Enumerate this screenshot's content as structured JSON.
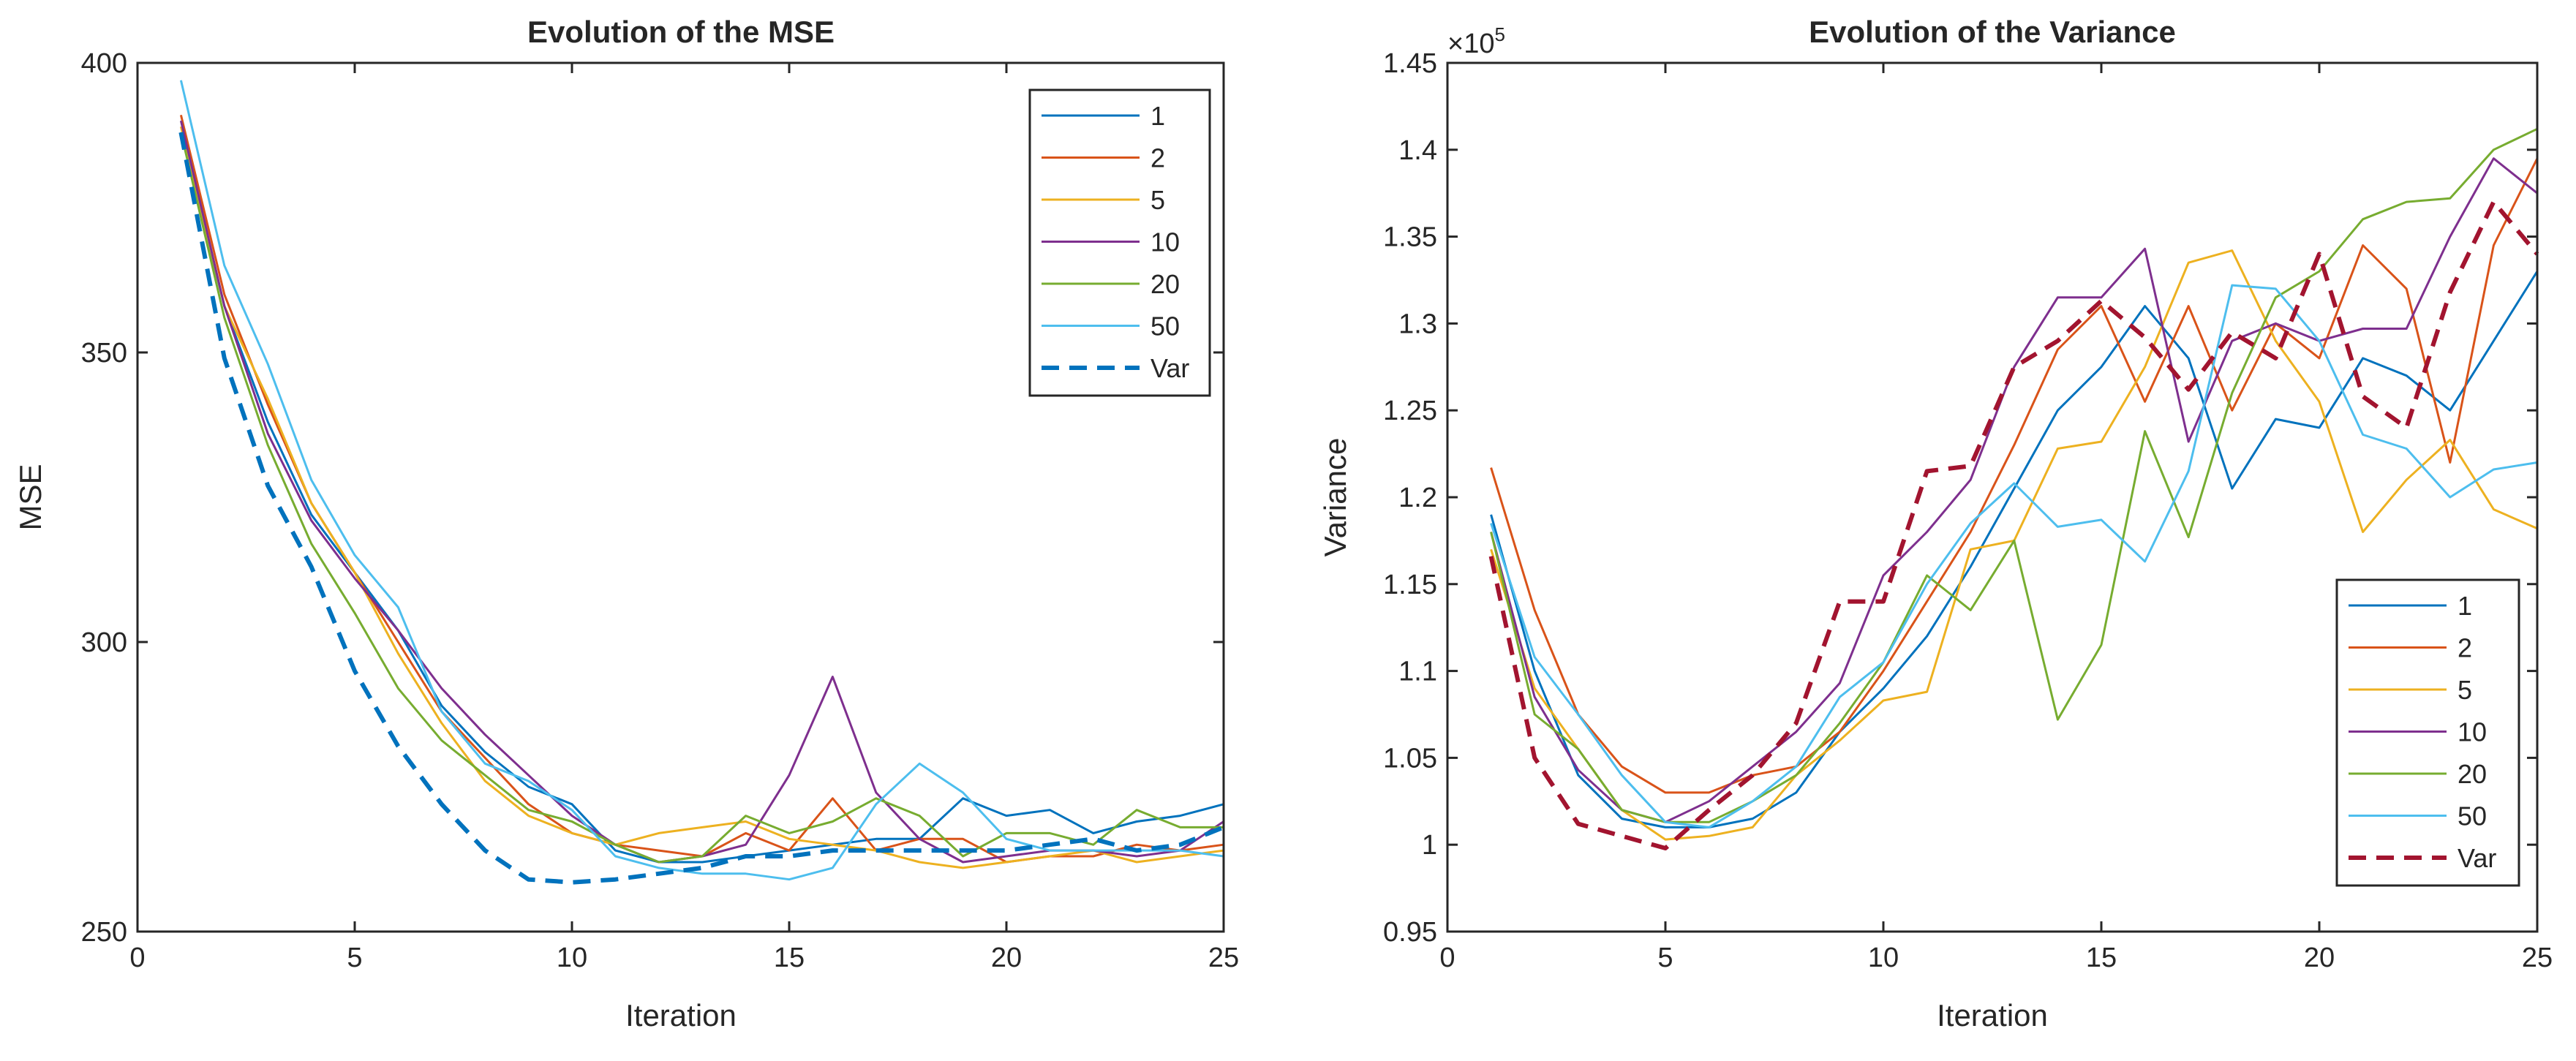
{
  "chart_data": [
    {
      "type": "line",
      "title": "Evolution of the MSE",
      "xlabel": "Iteration",
      "ylabel": "MSE",
      "xlim": [
        0,
        25
      ],
      "ylim": [
        250,
        400
      ],
      "xticks": [
        "0",
        "5",
        "10",
        "15",
        "20",
        "25"
      ],
      "xtick_values": [
        0,
        5,
        10,
        15,
        20,
        25
      ],
      "yticks": [
        "250",
        "300",
        "350",
        "400"
      ],
      "ytick_values": [
        250,
        300,
        350,
        400
      ],
      "exponent_label": "",
      "legend_position": "top-right",
      "grid": false,
      "x": [
        1,
        2,
        3,
        4,
        5,
        6,
        7,
        8,
        9,
        10,
        11,
        12,
        13,
        14,
        15,
        16,
        17,
        18,
        19,
        20,
        21,
        22,
        23,
        24,
        25
      ],
      "series": [
        {
          "name": "1",
          "color": "#0072BD",
          "dashed": false,
          "values": [
            388,
            358,
            338,
            322,
            312,
            302,
            289,
            281,
            275,
            272,
            264,
            262,
            262,
            263,
            264,
            265,
            266,
            266,
            273,
            270,
            271,
            267,
            269,
            270,
            272
          ]
        },
        {
          "name": "2",
          "color": "#D95319",
          "dashed": false,
          "values": [
            391,
            360,
            341,
            324,
            312,
            300,
            288,
            280,
            272,
            267,
            265,
            264,
            263,
            267,
            264,
            273,
            264,
            266,
            266,
            262,
            263,
            263,
            265,
            264,
            265
          ]
        },
        {
          "name": "5",
          "color": "#EDB120",
          "dashed": false,
          "values": [
            389,
            358,
            342,
            324,
            312,
            298,
            286,
            276,
            270,
            267,
            265,
            267,
            268,
            269,
            266,
            265,
            264,
            262,
            261,
            262,
            263,
            264,
            262,
            263,
            264
          ]
        },
        {
          "name": "10",
          "color": "#7E2F8E",
          "dashed": false,
          "values": [
            390,
            358,
            336,
            321,
            311,
            302,
            292,
            284,
            277,
            270,
            265,
            262,
            263,
            265,
            277,
            294,
            274,
            266,
            262,
            263,
            264,
            264,
            263,
            264,
            269
          ]
        },
        {
          "name": "20",
          "color": "#77AC30",
          "dashed": false,
          "values": [
            388,
            356,
            334,
            317,
            305,
            292,
            283,
            277,
            271,
            269,
            265,
            262,
            263,
            270,
            267,
            269,
            273,
            270,
            263,
            267,
            267,
            265,
            271,
            268,
            268
          ]
        },
        {
          "name": "50",
          "color": "#4DBEEE",
          "dashed": false,
          "values": [
            397,
            365,
            348,
            328,
            315,
            306,
            288,
            279,
            276,
            271,
            263,
            261,
            260,
            260,
            259,
            261,
            272,
            279,
            274,
            266,
            264,
            264,
            264,
            264,
            263
          ]
        },
        {
          "name": "Var",
          "color": "#0072BD",
          "dashed": true,
          "values": [
            388,
            349,
            327,
            313,
            295,
            282,
            272,
            264,
            259,
            258.5,
            259,
            260,
            261,
            263,
            263,
            264,
            264,
            264,
            264,
            264,
            265,
            266,
            264,
            265,
            268
          ]
        }
      ]
    },
    {
      "type": "line",
      "title": "Evolution of the Variance",
      "xlabel": "Iteration",
      "ylabel": "Variance",
      "xlim": [
        0,
        25
      ],
      "ylim": [
        0.95,
        1.45
      ],
      "xticks": [
        "0",
        "5",
        "10",
        "15",
        "20",
        "25"
      ],
      "xtick_values": [
        0,
        5,
        10,
        15,
        20,
        25
      ],
      "yticks": [
        "0.95",
        "1",
        "1.05",
        "1.1",
        "1.15",
        "1.2",
        "1.25",
        "1.3",
        "1.35",
        "1.4",
        "1.45"
      ],
      "ytick_values": [
        0.95,
        1.0,
        1.05,
        1.1,
        1.15,
        1.2,
        1.25,
        1.3,
        1.35,
        1.4,
        1.45
      ],
      "exponent_label": "×10",
      "exponent_power": "5",
      "legend_position": "bottom-right",
      "grid": false,
      "x": [
        1,
        2,
        3,
        4,
        5,
        6,
        7,
        8,
        9,
        10,
        11,
        12,
        13,
        14,
        15,
        16,
        17,
        18,
        19,
        20,
        21,
        22,
        23,
        24,
        25
      ],
      "series": [
        {
          "name": "1",
          "color": "#0072BD",
          "dashed": false,
          "values": [
            1.19,
            1.1,
            1.04,
            1.015,
            1.01,
            1.01,
            1.015,
            1.03,
            1.065,
            1.09,
            1.12,
            1.16,
            1.205,
            1.25,
            1.275,
            1.31,
            1.28,
            1.205,
            1.245,
            1.24,
            1.28,
            1.27,
            1.25,
            1.29,
            1.33
          ]
        },
        {
          "name": "2",
          "color": "#D95319",
          "dashed": false,
          "values": [
            1.217,
            1.135,
            1.075,
            1.045,
            1.03,
            1.03,
            1.04,
            1.045,
            1.065,
            1.1,
            1.14,
            1.18,
            1.23,
            1.285,
            1.31,
            1.255,
            1.31,
            1.25,
            1.3,
            1.28,
            1.345,
            1.32,
            1.22,
            1.345,
            1.395
          ]
        },
        {
          "name": "5",
          "color": "#EDB120",
          "dashed": false,
          "values": [
            1.17,
            1.09,
            1.055,
            1.02,
            1.003,
            1.005,
            1.01,
            1.04,
            1.06,
            1.083,
            1.088,
            1.17,
            1.175,
            1.228,
            1.232,
            1.275,
            1.335,
            1.342,
            1.29,
            1.255,
            1.18,
            1.21,
            1.233,
            1.193,
            1.182
          ]
        },
        {
          "name": "10",
          "color": "#7E2F8E",
          "dashed": false,
          "values": [
            1.18,
            1.085,
            1.043,
            1.02,
            1.013,
            1.025,
            1.045,
            1.065,
            1.093,
            1.155,
            1.18,
            1.21,
            1.275,
            1.315,
            1.315,
            1.343,
            1.232,
            1.29,
            1.3,
            1.29,
            1.297,
            1.297,
            1.35,
            1.395,
            1.375
          ]
        },
        {
          "name": "20",
          "color": "#77AC30",
          "dashed": false,
          "values": [
            1.18,
            1.075,
            1.055,
            1.02,
            1.013,
            1.013,
            1.025,
            1.04,
            1.07,
            1.105,
            1.155,
            1.135,
            1.175,
            1.072,
            1.115,
            1.238,
            1.177,
            1.26,
            1.315,
            1.33,
            1.36,
            1.37,
            1.372,
            1.4,
            1.412
          ]
        },
        {
          "name": "50",
          "color": "#4DBEEE",
          "dashed": false,
          "values": [
            1.185,
            1.108,
            1.075,
            1.04,
            1.013,
            1.01,
            1.025,
            1.045,
            1.085,
            1.105,
            1.15,
            1.185,
            1.208,
            1.183,
            1.187,
            1.163,
            1.215,
            1.322,
            1.32,
            1.29,
            1.236,
            1.228,
            1.2,
            1.216,
            1.22
          ]
        },
        {
          "name": "Var",
          "color": "#A2142F",
          "dashed": true,
          "values": [
            1.166,
            1.05,
            1.012,
            1.005,
            0.998,
            1.02,
            1.04,
            1.07,
            1.14,
            1.14,
            1.215,
            1.218,
            1.275,
            1.29,
            1.313,
            1.292,
            1.262,
            1.295,
            1.28,
            1.34,
            1.258,
            1.24,
            1.318,
            1.37,
            1.34
          ]
        }
      ]
    }
  ]
}
